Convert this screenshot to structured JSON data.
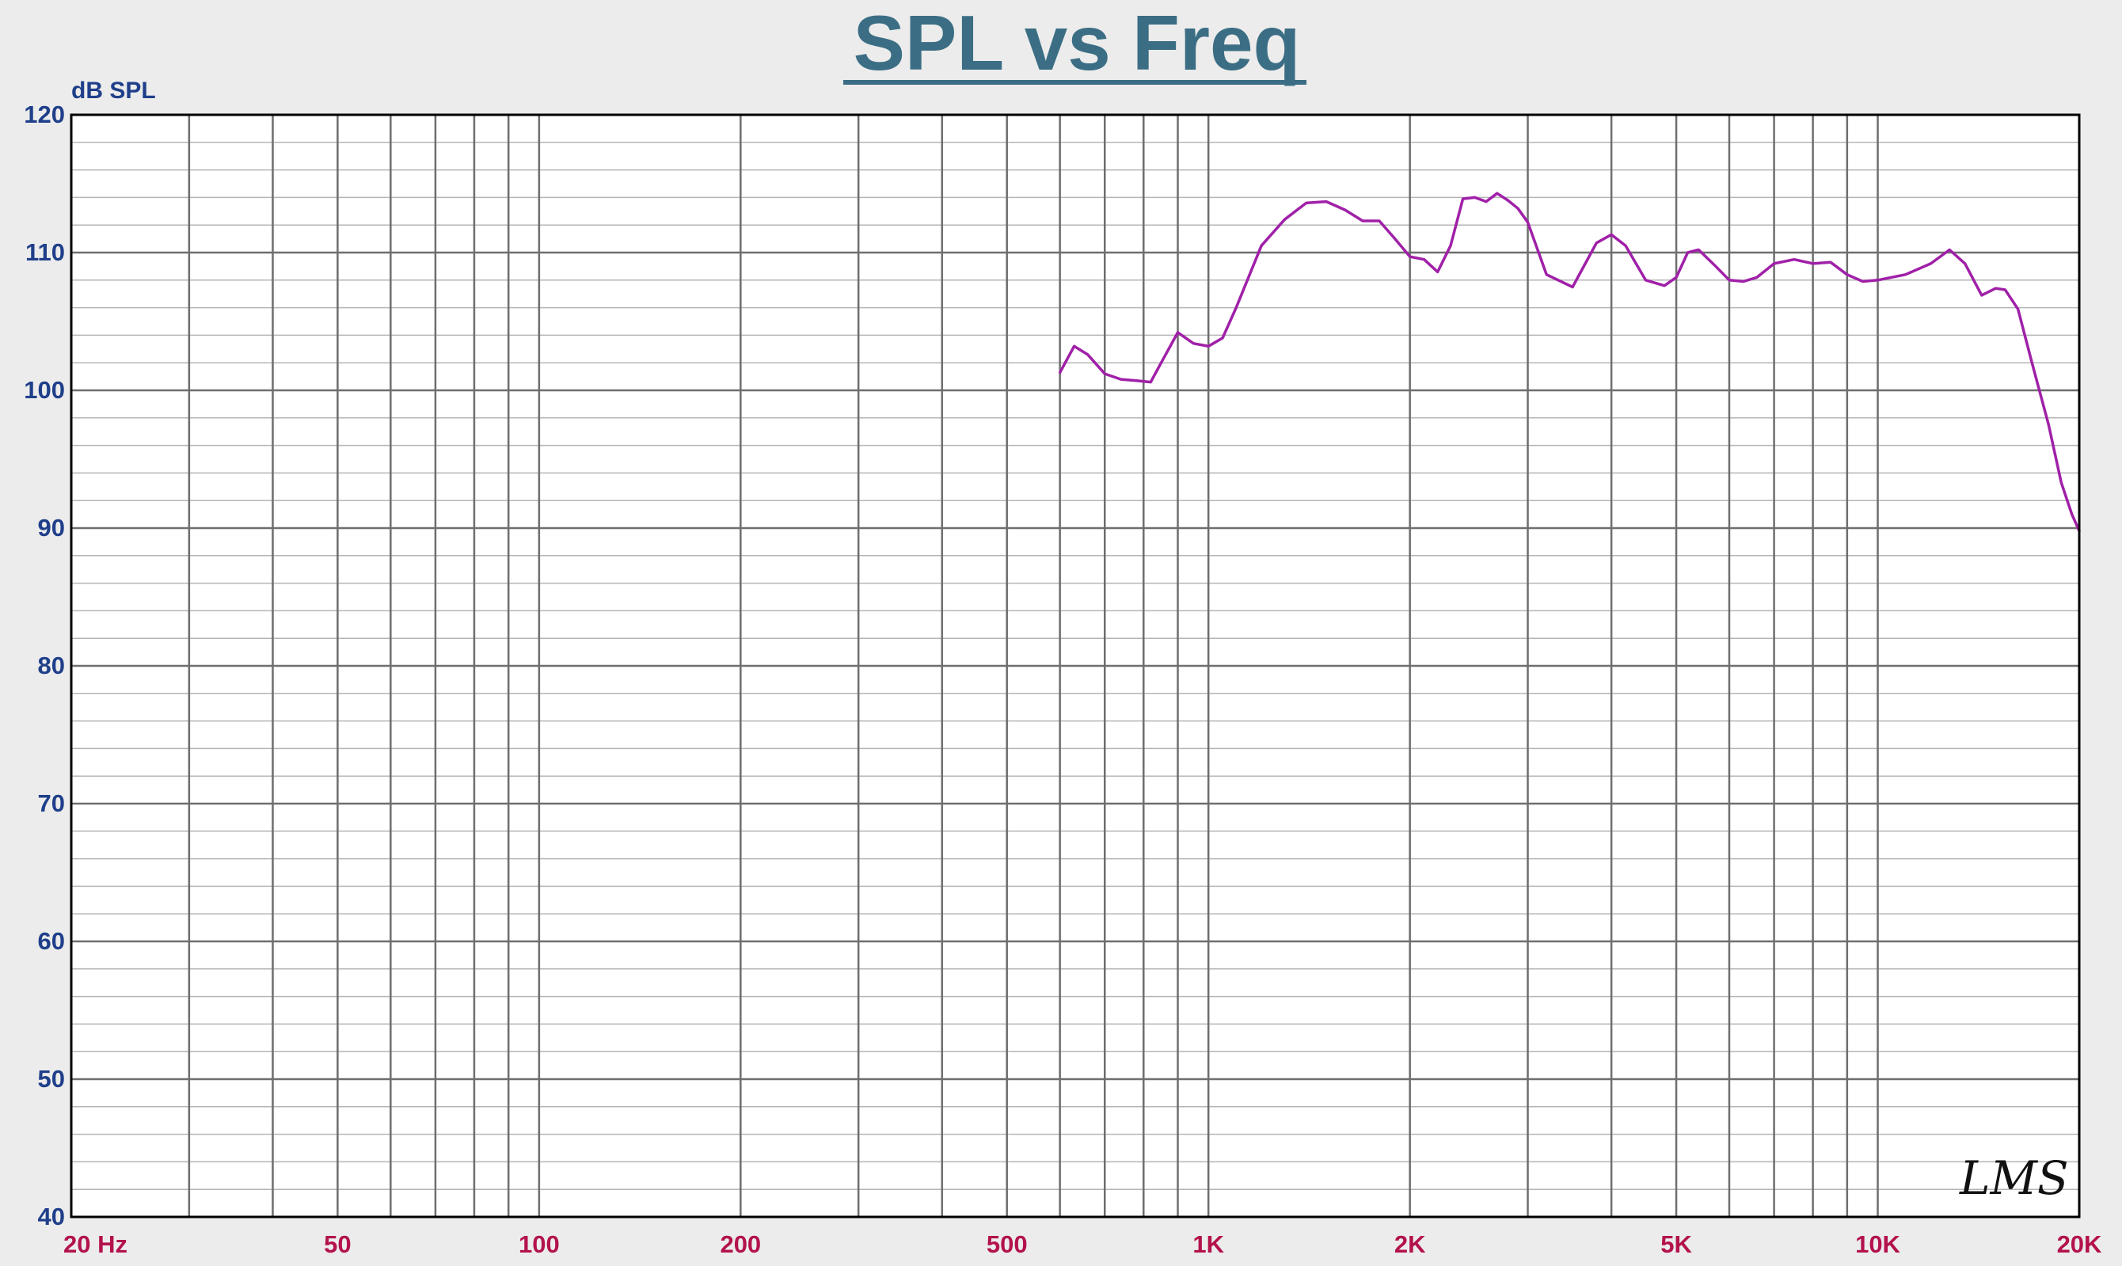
{
  "chart_data": {
    "type": "line",
    "title": "SPL vs Freq",
    "ylabel": "dB SPL",
    "xlabel": "",
    "xscale": "log",
    "xlim": [
      20,
      20000
    ],
    "ylim": [
      40,
      120
    ],
    "grid": true,
    "y_ticks": [
      40,
      50,
      60,
      70,
      80,
      90,
      100,
      110,
      120
    ],
    "y_tick_labels": [
      "40",
      "50",
      "60",
      "70",
      "80",
      "90",
      "100",
      "110",
      "120"
    ],
    "y_minor_step": 2,
    "x_ticks": [
      20,
      50,
      100,
      200,
      500,
      1000,
      2000,
      5000,
      10000,
      20000
    ],
    "x_tick_labels": [
      "20 Hz",
      "50",
      "100",
      "200",
      "500",
      "1K",
      "2K",
      "5K",
      "10K",
      "20K"
    ],
    "x_grid_lines": [
      30,
      40,
      50,
      60,
      70,
      80,
      90,
      100,
      200,
      300,
      400,
      500,
      600,
      700,
      800,
      900,
      1000,
      2000,
      3000,
      4000,
      5000,
      6000,
      7000,
      8000,
      9000,
      10000
    ],
    "series": [
      {
        "name": "",
        "color": "#a020a8",
        "x": [
          600,
          630,
          660,
          700,
          740,
          780,
          820,
          850,
          900,
          950,
          1000,
          1050,
          1100,
          1200,
          1300,
          1400,
          1500,
          1600,
          1700,
          1800,
          1900,
          2000,
          2100,
          2200,
          2300,
          2400,
          2500,
          2600,
          2700,
          2800,
          2900,
          3000,
          3200,
          3500,
          3800,
          4000,
          4200,
          4500,
          4800,
          5000,
          5200,
          5400,
          5700,
          6000,
          6300,
          6600,
          7000,
          7500,
          8000,
          8500,
          9000,
          9500,
          10000,
          11000,
          12000,
          12800,
          13500,
          14300,
          15000,
          15500,
          16200,
          17000,
          18000,
          18800,
          19500,
          20000
        ],
        "y": [
          101.3,
          103.2,
          102.6,
          101.2,
          100.8,
          100.7,
          100.6,
          102.0,
          104.2,
          103.4,
          103.2,
          103.8,
          106.0,
          110.5,
          112.4,
          113.6,
          113.7,
          113.1,
          112.3,
          112.3,
          111.0,
          109.7,
          109.5,
          108.6,
          110.5,
          113.9,
          114.0,
          113.7,
          114.3,
          113.8,
          113.2,
          112.2,
          108.4,
          107.5,
          110.7,
          111.3,
          110.5,
          108.0,
          107.6,
          108.2,
          110.0,
          110.2,
          109.1,
          108.0,
          107.9,
          108.2,
          109.2,
          109.5,
          109.2,
          109.3,
          108.4,
          107.9,
          108.0,
          108.4,
          109.2,
          110.2,
          109.2,
          106.9,
          107.4,
          107.3,
          105.9,
          102.0,
          97.5,
          93.3,
          91.0,
          89.8
        ]
      }
    ]
  },
  "watermark": {
    "text": "LMS"
  }
}
